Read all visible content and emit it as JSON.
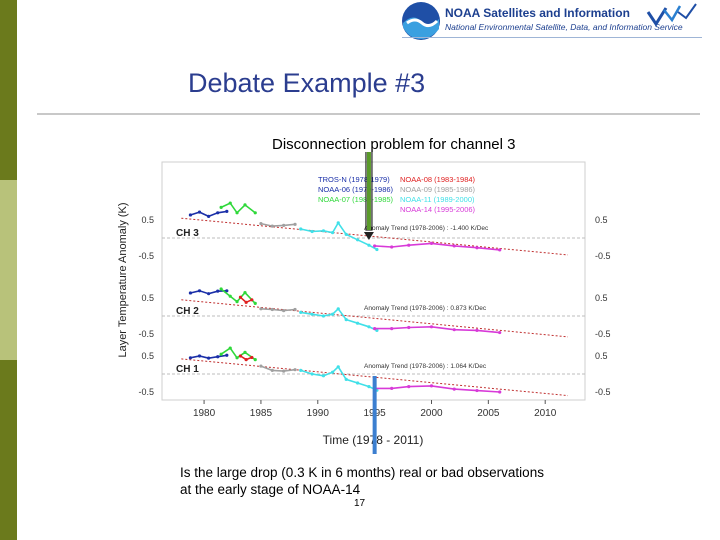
{
  "header": {
    "title": "NOAA Satellites and Information",
    "subtitle": "National Environmental Satellite, Data, and Information Service"
  },
  "slide": {
    "title": "Debate Example #3",
    "caption_line1": "Is the large drop (0.3 K in 6 months) real or bad observations",
    "caption_line2": "at the early stage of NOAA-14",
    "page_number": "17"
  },
  "colors": {
    "title": "#2b3d8f",
    "sidebar": [
      "#6b7a1c",
      "#b8c27a",
      "#6b7a1c",
      "#b8c27a"
    ],
    "arrow_green": "#5a9a2a",
    "arrow_blue": "#3c7fd0"
  },
  "chart_data": {
    "type": "line",
    "title": "Disconnection problem for channel 3",
    "xlabel": "Time (1978 - 2011)",
    "ylabel": "Layer Temperature Anomaly (K)",
    "xlim": [
      1976.3,
      2013.5
    ],
    "x_ticks": [
      1980,
      1985,
      1990,
      1995,
      2000,
      2005,
      2010
    ],
    "x_tick_labels": [
      "1980",
      "1985",
      "1990",
      "1995",
      "2000",
      "2005",
      "2010"
    ],
    "y_tick_labels": [
      "0.5",
      "-0.5"
    ],
    "legend": [
      {
        "name": "TROS-N (1978-1979)",
        "color": "#1a2fa8"
      },
      {
        "name": "NOAA-06 (1979-1986)",
        "color": "#1a2fa8"
      },
      {
        "name": "NOAA-07 (1981-1985)",
        "color": "#2fd83a"
      },
      {
        "name": "NOAA-08 (1983-1984)",
        "color": "#e02020"
      },
      {
        "name": "NOAA-09 (1985-1986)",
        "color": "#a0a0a0"
      },
      {
        "name": "NOAA-11 (1989-2000)",
        "color": "#40e0e8"
      },
      {
        "name": "NOAA-14 (1995-2006)",
        "color": "#d83ad8"
      }
    ],
    "panels": [
      {
        "label": "CH 3",
        "trend_label": "Anomaly Trend (1978-2006) : -1.400 K/Dec",
        "trend": {
          "start": [
            1978,
            0.55
          ],
          "end": [
            2012,
            -0.47
          ]
        },
        "series": [
          {
            "name": "TROS-N",
            "color": "#1a2fa8",
            "x": [
              1978.8,
              1979.6,
              1980.4,
              1981.2,
              1982.0
            ],
            "y": [
              0.64,
              0.72,
              0.6,
              0.7,
              0.74
            ]
          },
          {
            "name": "NOAA-07",
            "color": "#2fd83a",
            "x": [
              1981.5,
              1982.3,
              1982.9,
              1983.6,
              1984.5
            ],
            "y": [
              0.85,
              0.97,
              0.7,
              0.92,
              0.7
            ]
          },
          {
            "name": "NOAA-09",
            "color": "#a0a0a0",
            "x": [
              1985.0,
              1986.0,
              1987.0,
              1988.0
            ],
            "y": [
              0.4,
              0.33,
              0.35,
              0.38
            ]
          },
          {
            "name": "NOAA-11",
            "color": "#40e0e8",
            "x": [
              1988.5,
              1989.5,
              1990.5,
              1991.3,
              1991.8,
              1992.5,
              1993.5,
              1994.5,
              1995.2
            ],
            "y": [
              0.25,
              0.18,
              0.2,
              0.15,
              0.42,
              0.1,
              -0.05,
              -0.2,
              -0.32
            ]
          },
          {
            "name": "NOAA-14",
            "color": "#d83ad8",
            "x": [
              1995.0,
              1996.5,
              1998.0,
              2000.0,
              2002.0,
              2004.0,
              2006.0
            ],
            "y": [
              -0.22,
              -0.25,
              -0.2,
              -0.15,
              -0.22,
              -0.27,
              -0.33
            ]
          }
        ]
      },
      {
        "label": "CH 2",
        "trend_label": "Anomaly Trend (1978-2006) : 0.873 K/Dec",
        "trend": {
          "start": [
            1978,
            0.45
          ],
          "end": [
            2012,
            -0.58
          ]
        },
        "series": [
          {
            "name": "TROS-N",
            "color": "#1a2fa8",
            "x": [
              1978.8,
              1979.6,
              1980.4,
              1981.2,
              1982.0
            ],
            "y": [
              0.64,
              0.7,
              0.62,
              0.69,
              0.7
            ]
          },
          {
            "name": "NOAA-07",
            "color": "#2fd83a",
            "x": [
              1981.5,
              1982.3,
              1982.9,
              1983.6,
              1984.5
            ],
            "y": [
              0.75,
              0.55,
              0.4,
              0.65,
              0.35
            ]
          },
          {
            "name": "NOAA-08",
            "color": "#e02020",
            "x": [
              1983.2,
              1983.7,
              1984.2
            ],
            "y": [
              0.52,
              0.38,
              0.45
            ]
          },
          {
            "name": "NOAA-09",
            "color": "#a0a0a0",
            "x": [
              1985.0,
              1986.0,
              1987.0,
              1988.0
            ],
            "y": [
              0.2,
              0.18,
              0.15,
              0.18
            ]
          },
          {
            "name": "NOAA-11",
            "color": "#40e0e8",
            "x": [
              1988.5,
              1989.5,
              1990.5,
              1991.3,
              1991.8,
              1992.5,
              1993.5,
              1994.5,
              1995.2
            ],
            "y": [
              0.1,
              0.05,
              0.0,
              0.05,
              0.2,
              -0.1,
              -0.2,
              -0.3,
              -0.4
            ]
          },
          {
            "name": "NOAA-14",
            "color": "#d83ad8",
            "x": [
              1995.0,
              1996.5,
              1998.0,
              2000.0,
              2002.0,
              2004.0,
              2006.0
            ],
            "y": [
              -0.35,
              -0.35,
              -0.32,
              -0.3,
              -0.38,
              -0.4,
              -0.46
            ]
          }
        ]
      },
      {
        "label": "CH 1",
        "trend_label": "Anomaly Trend (1978-2006) : 1.064 K/Dec",
        "trend": {
          "start": [
            1978,
            0.42
          ],
          "end": [
            2012,
            -0.6
          ]
        },
        "series": [
          {
            "name": "TROS-N",
            "color": "#1a2fa8",
            "x": [
              1978.8,
              1979.6,
              1980.4,
              1981.2,
              1982.0
            ],
            "y": [
              0.45,
              0.5,
              0.44,
              0.48,
              0.52
            ]
          },
          {
            "name": "NOAA-07",
            "color": "#2fd83a",
            "x": [
              1981.5,
              1982.3,
              1982.9,
              1983.6,
              1984.5
            ],
            "y": [
              0.55,
              0.72,
              0.45,
              0.6,
              0.4
            ]
          },
          {
            "name": "NOAA-08",
            "color": "#e02020",
            "x": [
              1983.2,
              1983.7,
              1984.2
            ],
            "y": [
              0.5,
              0.4,
              0.46
            ]
          },
          {
            "name": "NOAA-09",
            "color": "#a0a0a0",
            "x": [
              1985.0,
              1986.0,
              1987.0,
              1988.0
            ],
            "y": [
              0.22,
              0.1,
              0.08,
              0.12
            ]
          },
          {
            "name": "NOAA-11",
            "color": "#40e0e8",
            "x": [
              1988.5,
              1989.5,
              1990.5,
              1991.3,
              1991.8,
              1992.5,
              1993.5,
              1994.5,
              1995.2
            ],
            "y": [
              0.1,
              0.0,
              -0.05,
              0.05,
              0.2,
              -0.15,
              -0.25,
              -0.35,
              -0.45
            ]
          },
          {
            "name": "NOAA-14",
            "color": "#d83ad8",
            "x": [
              1995.0,
              1996.5,
              1998.0,
              2000.0,
              2002.0,
              2004.0,
              2006.0
            ],
            "y": [
              -0.4,
              -0.4,
              -0.35,
              -0.33,
              -0.42,
              -0.46,
              -0.5
            ]
          }
        ]
      }
    ],
    "annotations": [
      {
        "type": "arrow",
        "color": "#5a9a2a",
        "x": 1994.5,
        "direction": "down",
        "from": "title",
        "to_panel": 0
      },
      {
        "type": "arrow",
        "color": "#3c7fd0",
        "x": 1995.0,
        "direction": "up",
        "from": "bottom",
        "to_panel": 2
      }
    ]
  }
}
